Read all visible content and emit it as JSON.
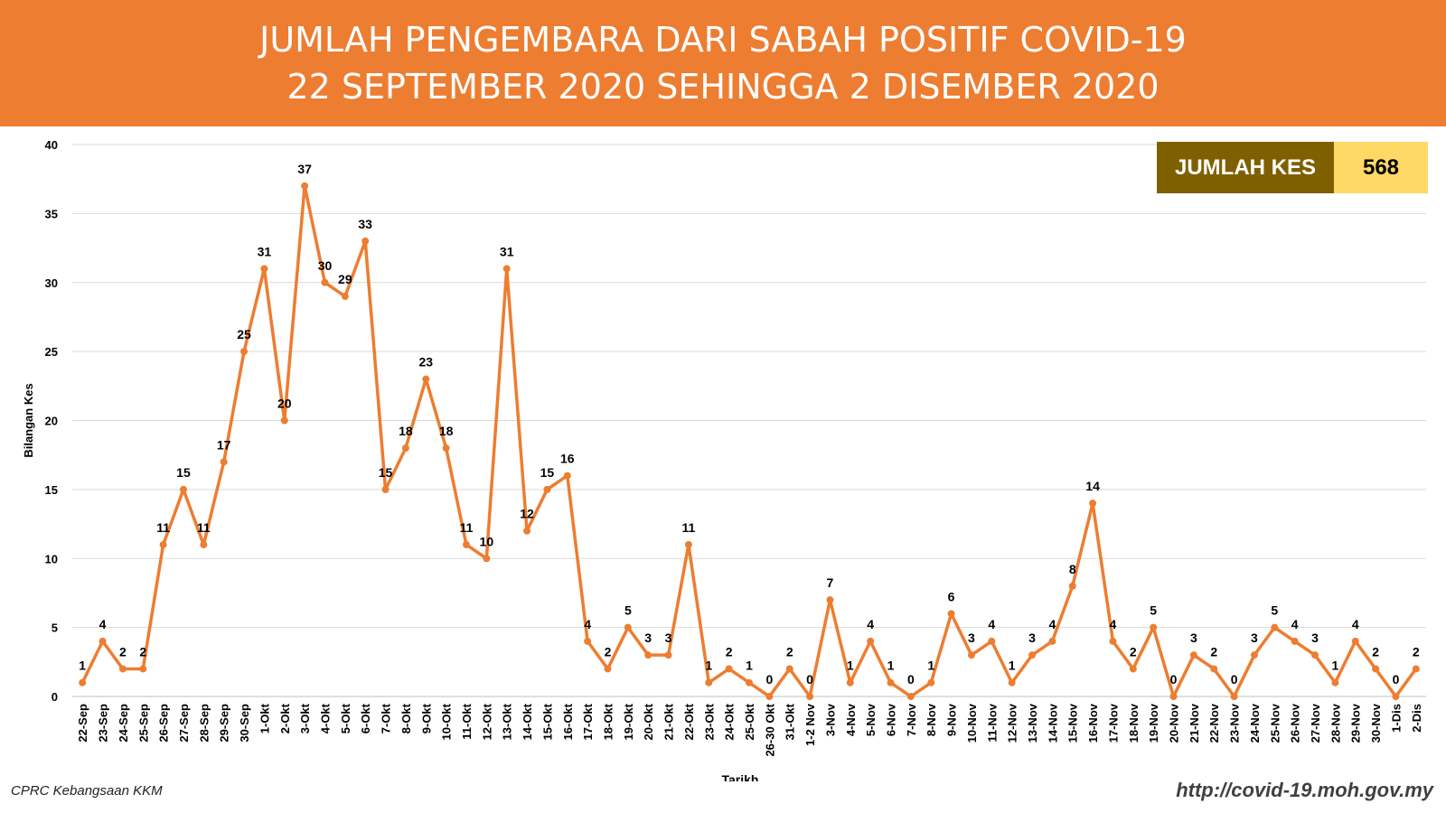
{
  "header": {
    "title_line1": "JUMLAH PENGEMBARA DARI SABAH POSITIF COVID-19",
    "title_line2": "22 SEPTEMBER 2020 SEHINGGA 2 DISEMBER 2020"
  },
  "total": {
    "label": "JUMLAH KES",
    "value": "568"
  },
  "footer": {
    "source": "CPRC Kebangsaan KKM",
    "url": "http://covid-19.moh.gov.my"
  },
  "colors": {
    "banner": "#ED7D31",
    "line": "#ED7D31",
    "total_label_bg": "#7F6000",
    "total_value_bg": "#FFD966"
  },
  "chart_data": {
    "type": "line",
    "title": "",
    "xlabel": "Tarikh",
    "ylabel": "Bilangan Kes",
    "ylim": [
      0,
      40
    ],
    "yticks": [
      0,
      5,
      10,
      15,
      20,
      25,
      30,
      35,
      40
    ],
    "grid": true,
    "data_labels": true,
    "categories": [
      "22-Sep",
      "23-Sep",
      "24-Sep",
      "25-Sep",
      "26-Sep",
      "27-Sep",
      "28-Sep",
      "29-Sep",
      "30-Sep",
      "1-Okt",
      "2-Okt",
      "3-Okt",
      "4-Okt",
      "5-Okt",
      "6-Okt",
      "7-Okt",
      "8-Okt",
      "9-Okt",
      "10-Okt",
      "11-Okt",
      "12-Okt",
      "13-Okt",
      "14-Okt",
      "15-Okt",
      "16-Okt",
      "17-Okt",
      "18-Okt",
      "19-Okt",
      "20-Okt",
      "21-Okt",
      "22-Okt",
      "23-Okt",
      "24-Okt",
      "25-Okt",
      "26-30 Okt",
      "31-Okt",
      "1-2 Nov",
      "3-Nov",
      "4-Nov",
      "5-Nov",
      "6-Nov",
      "7-Nov",
      "8-Nov",
      "9-Nov",
      "10-Nov",
      "11-Nov",
      "12-Nov",
      "13-Nov",
      "14-Nov",
      "15-Nov",
      "16-Nov",
      "17-Nov",
      "18-Nov",
      "19-Nov",
      "20-Nov",
      "21-Nov",
      "22-Nov",
      "23-Nov",
      "24-Nov",
      "25-Nov",
      "26-Nov",
      "27-Nov",
      "28-Nov",
      "29-Nov",
      "30-Nov",
      "1-Dis",
      "2-Dis"
    ],
    "values": [
      1,
      4,
      2,
      2,
      11,
      15,
      11,
      17,
      25,
      31,
      20,
      37,
      30,
      29,
      33,
      15,
      18,
      23,
      18,
      11,
      10,
      31,
      12,
      15,
      16,
      4,
      2,
      5,
      3,
      3,
      11,
      1,
      2,
      1,
      0,
      2,
      0,
      7,
      1,
      4,
      1,
      0,
      1,
      6,
      3,
      4,
      1,
      3,
      4,
      8,
      14,
      4,
      2,
      5,
      0,
      3,
      2,
      0,
      3,
      5,
      4,
      3,
      1,
      4,
      2,
      0,
      2
    ]
  }
}
